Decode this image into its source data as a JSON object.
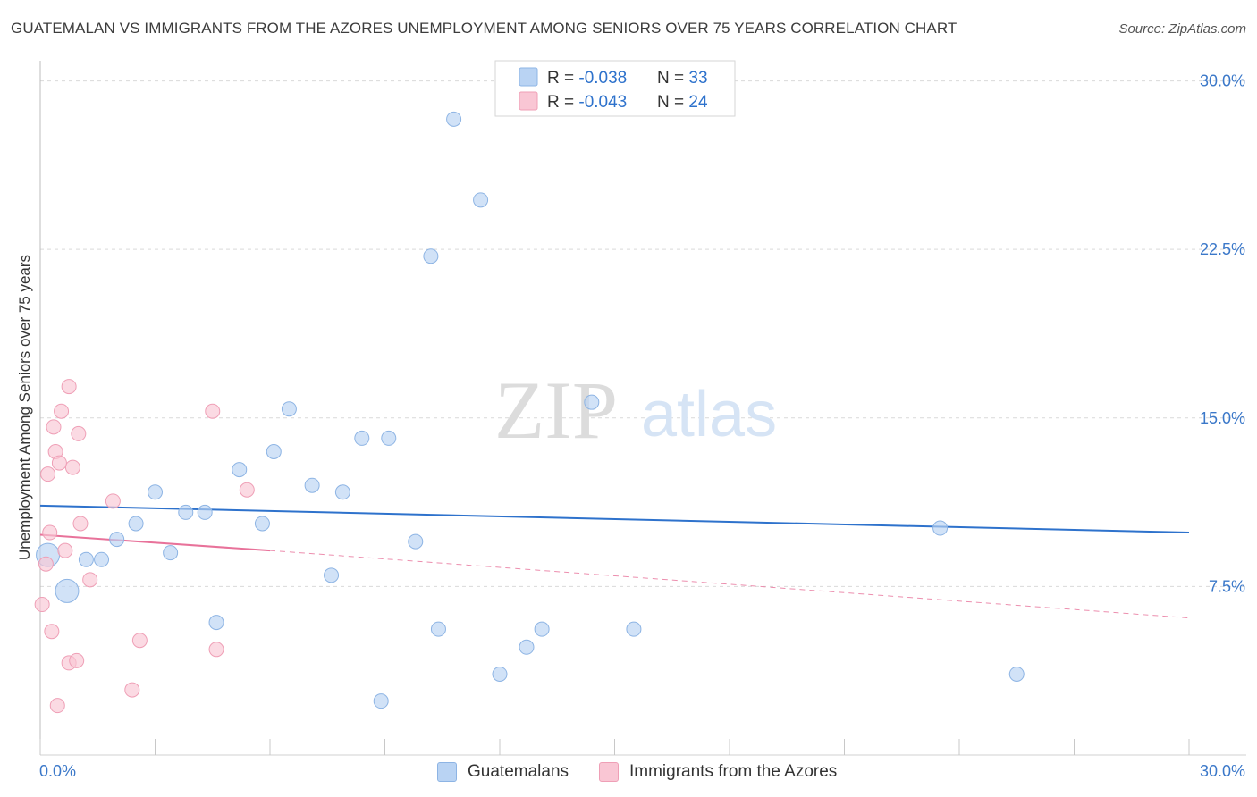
{
  "title": "GUATEMALAN VS IMMIGRANTS FROM THE AZORES UNEMPLOYMENT AMONG SENIORS OVER 75 YEARS CORRELATION CHART",
  "source": "Source: ZipAtlas.com",
  "watermark": {
    "zip": "ZIP",
    "atlas": "atlas"
  },
  "colors": {
    "blue_fill": "#b9d3f3",
    "blue_stroke": "#8db4e4",
    "blue_line": "#2e72cc",
    "pink_fill": "#f9c6d4",
    "pink_stroke": "#ef9fb6",
    "pink_line": "#e8729a",
    "axis_label": "#3b78c9",
    "grid": "#d9d9d9"
  },
  "legend_box": [
    {
      "r_label": "R = ",
      "r_value": "-0.038",
      "n_label": "N = ",
      "n_value": "33"
    },
    {
      "r_label": "R = ",
      "r_value": "-0.043",
      "n_label": "N = ",
      "n_value": "24"
    }
  ],
  "legend_bottom": [
    {
      "label": "Guatemalans"
    },
    {
      "label": "Immigrants from the Azores"
    }
  ],
  "chart_data": {
    "type": "scatter",
    "xlabel": "",
    "ylabel": "Unemployment Among Seniors over 75 years",
    "xlim": [
      0,
      30
    ],
    "ylim": [
      0,
      30.5
    ],
    "x_tick_labels": [
      "0.0%",
      "30.0%"
    ],
    "y_ticks": [
      7.5,
      15.0,
      22.5,
      30.0
    ],
    "y_tick_labels": [
      "7.5%",
      "15.0%",
      "22.5%",
      "30.0%"
    ],
    "series": [
      {
        "name": "Guatemalans",
        "color": "blue",
        "points": [
          {
            "x": 0.2,
            "y": 8.9,
            "big": true
          },
          {
            "x": 0.7,
            "y": 7.3,
            "big": true
          },
          {
            "x": 1.2,
            "y": 8.7
          },
          {
            "x": 1.6,
            "y": 8.7
          },
          {
            "x": 2.0,
            "y": 9.6
          },
          {
            "x": 2.5,
            "y": 10.3
          },
          {
            "x": 3.0,
            "y": 11.7
          },
          {
            "x": 3.4,
            "y": 9.0
          },
          {
            "x": 3.8,
            "y": 10.8
          },
          {
            "x": 4.3,
            "y": 10.8
          },
          {
            "x": 4.6,
            "y": 5.9
          },
          {
            "x": 5.2,
            "y": 12.7
          },
          {
            "x": 5.8,
            "y": 10.3
          },
          {
            "x": 6.1,
            "y": 13.5
          },
          {
            "x": 6.5,
            "y": 15.4
          },
          {
            "x": 7.1,
            "y": 12.0
          },
          {
            "x": 7.6,
            "y": 8.0
          },
          {
            "x": 7.9,
            "y": 11.7
          },
          {
            "x": 8.4,
            "y": 14.1
          },
          {
            "x": 8.9,
            "y": 2.4
          },
          {
            "x": 9.1,
            "y": 14.1
          },
          {
            "x": 9.8,
            "y": 9.5
          },
          {
            "x": 10.2,
            "y": 22.2
          },
          {
            "x": 10.4,
            "y": 5.6
          },
          {
            "x": 10.8,
            "y": 28.3
          },
          {
            "x": 11.5,
            "y": 24.7
          },
          {
            "x": 12.0,
            "y": 3.6
          },
          {
            "x": 12.7,
            "y": 4.8
          },
          {
            "x": 13.1,
            "y": 5.6
          },
          {
            "x": 14.4,
            "y": 15.7
          },
          {
            "x": 15.5,
            "y": 5.6
          },
          {
            "x": 23.5,
            "y": 10.1
          },
          {
            "x": 25.5,
            "y": 3.6
          }
        ],
        "trend": {
          "x1": 0,
          "y1": 11.1,
          "x2": 30,
          "y2": 9.9
        }
      },
      {
        "name": "Immigrants from the Azores",
        "color": "pink",
        "points": [
          {
            "x": 0.05,
            "y": 6.7
          },
          {
            "x": 0.15,
            "y": 8.5
          },
          {
            "x": 0.2,
            "y": 12.5
          },
          {
            "x": 0.25,
            "y": 9.9
          },
          {
            "x": 0.3,
            "y": 5.5
          },
          {
            "x": 0.35,
            "y": 14.6
          },
          {
            "x": 0.4,
            "y": 13.5
          },
          {
            "x": 0.45,
            "y": 2.2
          },
          {
            "x": 0.5,
            "y": 13.0
          },
          {
            "x": 0.55,
            "y": 15.3
          },
          {
            "x": 0.65,
            "y": 9.1
          },
          {
            "x": 0.75,
            "y": 4.1
          },
          {
            "x": 0.75,
            "y": 16.4
          },
          {
            "x": 0.85,
            "y": 12.8
          },
          {
            "x": 0.95,
            "y": 4.2
          },
          {
            "x": 1.0,
            "y": 14.3
          },
          {
            "x": 1.05,
            "y": 10.3
          },
          {
            "x": 1.3,
            "y": 7.8
          },
          {
            "x": 1.9,
            "y": 11.3
          },
          {
            "x": 2.4,
            "y": 2.9
          },
          {
            "x": 2.6,
            "y": 5.1
          },
          {
            "x": 4.5,
            "y": 15.3
          },
          {
            "x": 4.6,
            "y": 4.7
          },
          {
            "x": 5.4,
            "y": 11.8
          }
        ],
        "trend": {
          "x1": 0,
          "y1": 9.8,
          "x2": 6.0,
          "y2": 9.1
        },
        "trend_dashed": {
          "x1": 6.0,
          "y1": 9.1,
          "x2": 30,
          "y2": 6.1
        }
      }
    ]
  }
}
